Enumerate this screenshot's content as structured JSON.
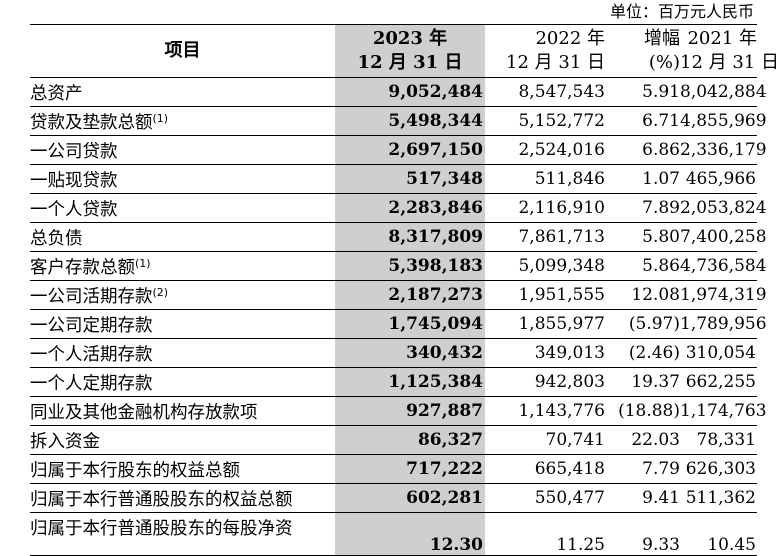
{
  "unit_label": "单位：百万元人民币",
  "headers": {
    "item": "项目",
    "cur_year": "2023 年",
    "cur_date": "12 月 31 日",
    "prev_year": "2022 年",
    "prev_date": "12 月 31 日",
    "growth": "增幅",
    "growth_unit": "(%)",
    "old_year": "2021 年",
    "old_date": "12 月 31 日"
  },
  "rows": [
    {
      "label": "总资产",
      "note": "",
      "y2023": "9,052,484",
      "y2022": "8,547,543",
      "growth": "5.91",
      "y2021": "8,042,884"
    },
    {
      "label": "贷款及垫款总额",
      "note": "(1)",
      "y2023": "5,498,344",
      "y2022": "5,152,772",
      "growth": "6.71",
      "y2021": "4,855,969"
    },
    {
      "label": "一公司贷款",
      "note": "",
      "y2023": "2,697,150",
      "y2022": "2,524,016",
      "growth": "6.86",
      "y2021": "2,336,179"
    },
    {
      "label": "一贴现贷款",
      "note": "",
      "y2023": "517,348",
      "y2022": "511,846",
      "growth": "1.07",
      "y2021": "465,966"
    },
    {
      "label": "一个人贷款",
      "note": "",
      "y2023": "2,283,846",
      "y2022": "2,116,910",
      "growth": "7.89",
      "y2021": "2,053,824"
    },
    {
      "label": "总负债",
      "note": "",
      "y2023": "8,317,809",
      "y2022": "7,861,713",
      "growth": "5.80",
      "y2021": "7,400,258"
    },
    {
      "label": "客户存款总额",
      "note": "(1)",
      "y2023": "5,398,183",
      "y2022": "5,099,348",
      "growth": "5.86",
      "y2021": "4,736,584"
    },
    {
      "label": "一公司活期存款",
      "note": "(2)",
      "y2023": "2,187,273",
      "y2022": "1,951,555",
      "growth": "12.08",
      "y2021": "1,974,319"
    },
    {
      "label": "一公司定期存款",
      "note": "",
      "y2023": "1,745,094",
      "y2022": "1,855,977",
      "growth": "(5.97)",
      "y2021": "1,789,956"
    },
    {
      "label": "一个人活期存款",
      "note": "",
      "y2023": "340,432",
      "y2022": "349,013",
      "growth": "(2.46)",
      "y2021": "310,054"
    },
    {
      "label": "一个人定期存款",
      "note": "",
      "y2023": "1,125,384",
      "y2022": "942,803",
      "growth": "19.37",
      "y2021": "662,255"
    },
    {
      "label": "同业及其他金融机构存放款项",
      "note": "",
      "y2023": "927,887",
      "y2022": "1,143,776",
      "growth": "(18.88)",
      "y2021": "1,174,763"
    },
    {
      "label": "拆入资金",
      "note": "",
      "y2023": "86,327",
      "y2022": "70,741",
      "growth": "22.03",
      "y2021": "78,331"
    },
    {
      "label": "归属于本行股东的权益总额",
      "note": "",
      "y2023": "717,222",
      "y2022": "665,418",
      "growth": "7.79",
      "y2021": "626,303"
    },
    {
      "label": "归属于本行普通股股东的权益总额",
      "note": "",
      "y2023": "602,281",
      "y2022": "550,477",
      "growth": "9.41",
      "y2021": "511,362"
    },
    {
      "label": "归属于本行普通股股东的每股净资",
      "note": "",
      "y2023": "12.30",
      "y2022": "11.25",
      "growth": "9.33",
      "y2021": "10.45"
    }
  ]
}
